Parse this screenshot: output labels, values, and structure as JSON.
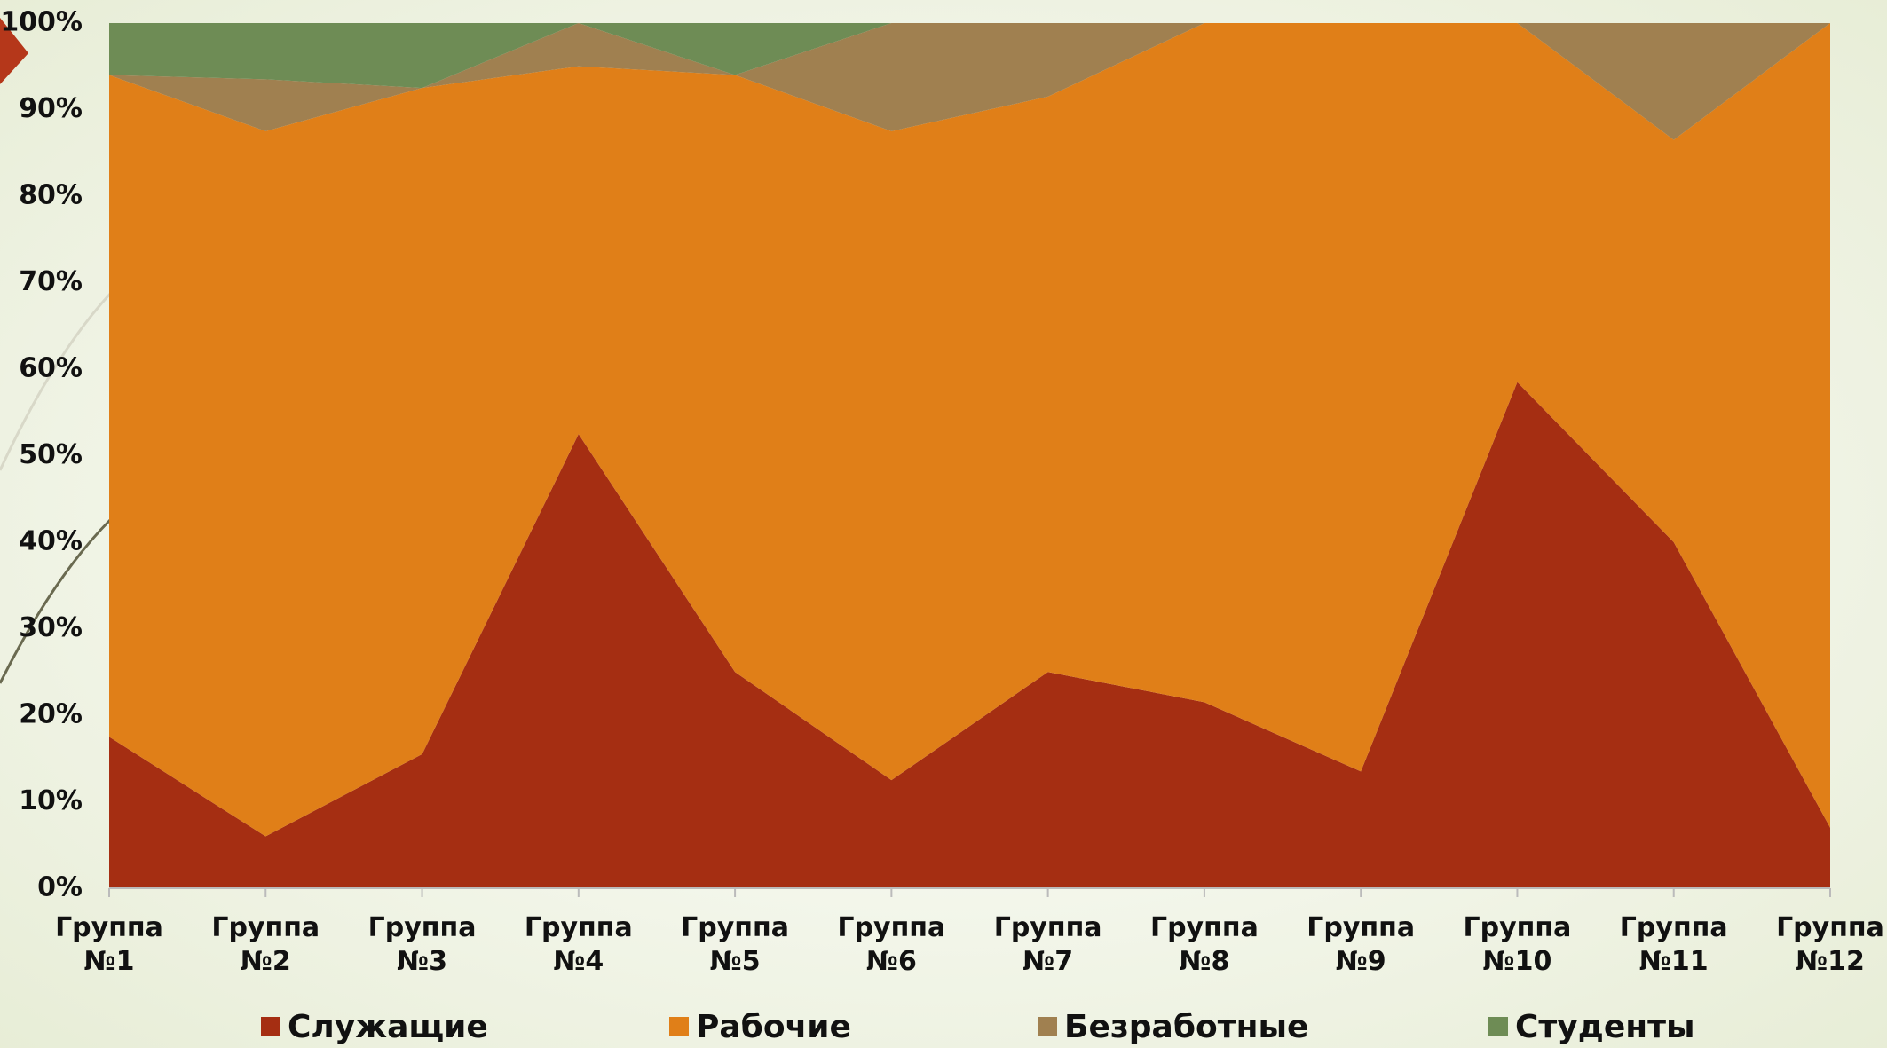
{
  "chart_data": {
    "type": "stacked_area_100",
    "categories": [
      "Группа №1",
      "Группа №2",
      "Группа №3",
      "Группа №4",
      "Группа №5",
      "Группа №6",
      "Группа №7",
      "Группа №8",
      "Группа №9",
      "Группа №10",
      "Группа №11",
      "Группа №12"
    ],
    "series": [
      {
        "name": "Служащие",
        "color": "#a52e12",
        "values": [
          17.5,
          6,
          15.5,
          52.5,
          25,
          12.5,
          25,
          21.5,
          13.5,
          58.5,
          40,
          7
        ]
      },
      {
        "name": "Рабочие",
        "color": "#e07f18",
        "values": [
          76.5,
          81.5,
          77,
          42.5,
          69,
          75,
          66.5,
          78.5,
          86.5,
          41.5,
          46.5,
          93
        ]
      },
      {
        "name": "Безработные",
        "color": "#a08050",
        "values": [
          0,
          6,
          0,
          5,
          0,
          12.5,
          8.5,
          0,
          0,
          0,
          13.5,
          0
        ]
      },
      {
        "name": "Студенты",
        "color": "#6e8c55",
        "values": [
          6,
          6.5,
          7.5,
          0,
          6,
          0,
          0,
          0,
          0,
          0,
          0,
          0
        ]
      }
    ],
    "ylim": [
      0,
      100
    ],
    "yticks": [
      {
        "value": 0,
        "label": "0%"
      },
      {
        "value": 10,
        "label": "10%"
      },
      {
        "value": 20,
        "label": "20%"
      },
      {
        "value": 30,
        "label": "30%"
      },
      {
        "value": 40,
        "label": "40%"
      },
      {
        "value": 50,
        "label": "50%"
      },
      {
        "value": 60,
        "label": "60%"
      },
      {
        "value": 70,
        "label": "70%"
      },
      {
        "value": 80,
        "label": "80%"
      },
      {
        "value": 90,
        "label": "90%"
      },
      {
        "value": 100,
        "label": "100%"
      }
    ],
    "legend": "bottom"
  }
}
